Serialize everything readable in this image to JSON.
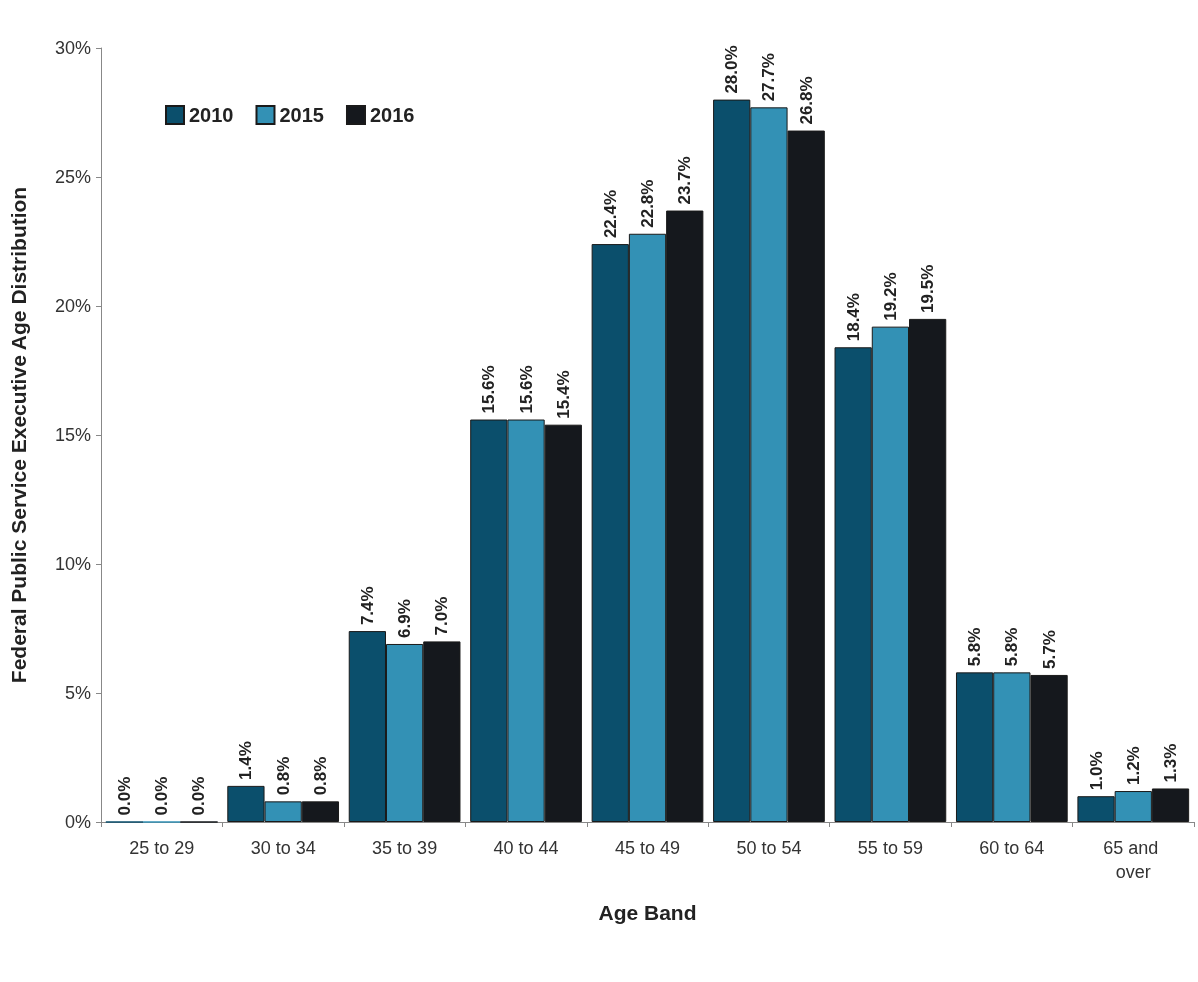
{
  "chart_data": {
    "type": "bar",
    "xlabel": "Age Band",
    "ylabel": "Federal Public Service Executive Age Distribution",
    "categories": [
      "25 to 29",
      "30 to 34",
      "35 to 39",
      "40 to 44",
      "45 to 49",
      "50 to 54",
      "55 to 59",
      "60 to 64",
      "65 and over"
    ],
    "series": [
      {
        "name": "2010",
        "color": "#0b4f6c",
        "values": [
          0.0,
          1.4,
          7.4,
          15.6,
          22.4,
          28.0,
          18.4,
          5.8,
          1.0
        ],
        "value_labels": [
          "0.0%",
          "1.4%",
          "7.4%",
          "15.6%",
          "22.4%",
          "28.0%",
          "18.4%",
          "5.8%",
          "1.0%"
        ]
      },
      {
        "name": "2015",
        "color": "#3391b5",
        "values": [
          0.0,
          0.8,
          6.9,
          15.6,
          22.8,
          27.7,
          19.2,
          5.8,
          1.2
        ],
        "value_labels": [
          "0.0%",
          "0.8%",
          "6.9%",
          "15.6%",
          "22.8%",
          "27.7%",
          "19.2%",
          "5.8%",
          "1.2%"
        ]
      },
      {
        "name": "2016",
        "color": "#15181d",
        "values": [
          0.0,
          0.8,
          7.0,
          15.4,
          23.7,
          26.8,
          19.5,
          5.7,
          1.3
        ],
        "value_labels": [
          "0.0%",
          "0.8%",
          "7.0%",
          "15.4%",
          "23.7%",
          "26.8%",
          "19.5%",
          "5.7%",
          "1.3%"
        ]
      }
    ],
    "ylim": [
      0,
      30
    ],
    "yticks": [
      {
        "value": 0,
        "label": "0%"
      },
      {
        "value": 5,
        "label": "5%"
      },
      {
        "value": 10,
        "label": "10%"
      },
      {
        "value": 15,
        "label": "15%"
      },
      {
        "value": 20,
        "label": "20%"
      },
      {
        "value": 25,
        "label": "25%"
      },
      {
        "value": 30,
        "label": "30%"
      }
    ],
    "grid": false,
    "legend": "top left"
  }
}
